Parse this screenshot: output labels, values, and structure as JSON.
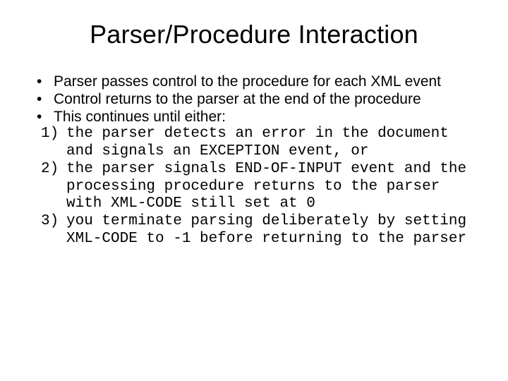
{
  "title": "Parser/Procedure Interaction",
  "bullets": [
    "Parser passes control to the procedure for each XML event",
    "Control returns to the parser at the end of the procedure",
    "This continues until either:"
  ],
  "numbered": [
    "the parser detects an error in the document and signals an EXCEPTION event, or",
    "the parser signals END-OF-INPUT event and the processing procedure returns to the parser with XML-CODE still set at 0",
    "you terminate parsing deliberately by setting XML-CODE to -1 before returning to the parser"
  ],
  "colors": {
    "background": "#ffffff",
    "text": "#000000"
  },
  "fonts": {
    "title_family": "Arial",
    "title_size_pt": 36,
    "body_family": "Arial",
    "body_size_pt": 21,
    "mono_family": "Courier New",
    "mono_size_pt": 21
  }
}
